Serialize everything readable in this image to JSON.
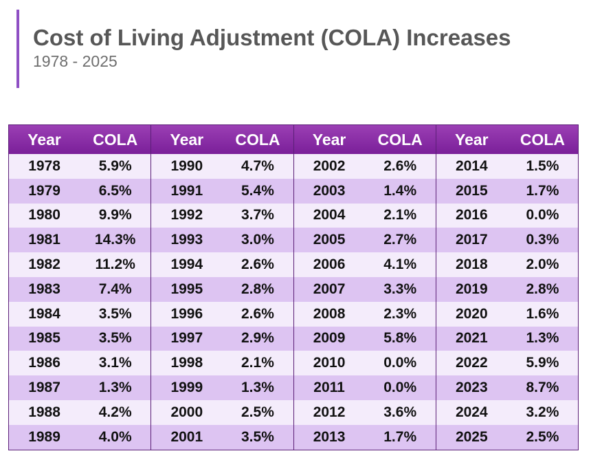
{
  "header": {
    "title": "Cost of Living Adjustment (COLA) Increases",
    "subtitle": "1978 - 2025"
  },
  "colors": {
    "accent_bar": "#8e4fc4",
    "header_bg": "#7a1f99",
    "row_light": "#f4ecfb",
    "row_dark": "#ddc4f2",
    "border": "#5b1f77"
  },
  "chart_data": {
    "type": "table",
    "columns": [
      "Year",
      "COLA"
    ],
    "groups": [
      {
        "year_label": "Year",
        "cola_label": "COLA",
        "rows": [
          {
            "year": "1978",
            "cola": "5.9%"
          },
          {
            "year": "1979",
            "cola": "6.5%"
          },
          {
            "year": "1980",
            "cola": "9.9%"
          },
          {
            "year": "1981",
            "cola": "14.3%"
          },
          {
            "year": "1982",
            "cola": "11.2%"
          },
          {
            "year": "1983",
            "cola": "7.4%"
          },
          {
            "year": "1984",
            "cola": "3.5%"
          },
          {
            "year": "1985",
            "cola": "3.5%"
          },
          {
            "year": "1986",
            "cola": "3.1%"
          },
          {
            "year": "1987",
            "cola": "1.3%"
          },
          {
            "year": "1988",
            "cola": "4.2%"
          },
          {
            "year": "1989",
            "cola": "4.0%"
          }
        ]
      },
      {
        "year_label": "Year",
        "cola_label": "COLA",
        "rows": [
          {
            "year": "1990",
            "cola": "4.7%"
          },
          {
            "year": "1991",
            "cola": "5.4%"
          },
          {
            "year": "1992",
            "cola": "3.7%"
          },
          {
            "year": "1993",
            "cola": "3.0%"
          },
          {
            "year": "1994",
            "cola": "2.6%"
          },
          {
            "year": "1995",
            "cola": "2.8%"
          },
          {
            "year": "1996",
            "cola": "2.6%"
          },
          {
            "year": "1997",
            "cola": "2.9%"
          },
          {
            "year": "1998",
            "cola": "2.1%"
          },
          {
            "year": "1999",
            "cola": "1.3%"
          },
          {
            "year": "2000",
            "cola": "2.5%"
          },
          {
            "year": "2001",
            "cola": "3.5%"
          }
        ]
      },
      {
        "year_label": "Year",
        "cola_label": "COLA",
        "rows": [
          {
            "year": "2002",
            "cola": "2.6%"
          },
          {
            "year": "2003",
            "cola": "1.4%"
          },
          {
            "year": "2004",
            "cola": "2.1%"
          },
          {
            "year": "2005",
            "cola": "2.7%"
          },
          {
            "year": "2006",
            "cola": "4.1%"
          },
          {
            "year": "2007",
            "cola": "3.3%"
          },
          {
            "year": "2008",
            "cola": "2.3%"
          },
          {
            "year": "2009",
            "cola": "5.8%"
          },
          {
            "year": "2010",
            "cola": "0.0%"
          },
          {
            "year": "2011",
            "cola": "0.0%"
          },
          {
            "year": "2012",
            "cola": "3.6%"
          },
          {
            "year": "2013",
            "cola": "1.7%"
          }
        ]
      },
      {
        "year_label": "Year",
        "cola_label": "COLA",
        "rows": [
          {
            "year": "2014",
            "cola": "1.5%"
          },
          {
            "year": "2015",
            "cola": "1.7%"
          },
          {
            "year": "2016",
            "cola": "0.0%"
          },
          {
            "year": "2017",
            "cola": "0.3%"
          },
          {
            "year": "2018",
            "cola": "2.0%"
          },
          {
            "year": "2019",
            "cola": "2.8%"
          },
          {
            "year": "2020",
            "cola": "1.6%"
          },
          {
            "year": "2021",
            "cola": "1.3%"
          },
          {
            "year": "2022",
            "cola": "5.9%"
          },
          {
            "year": "2023",
            "cola": "8.7%"
          },
          {
            "year": "2024",
            "cola": "3.2%"
          },
          {
            "year": "2025",
            "cola": "2.5%"
          }
        ]
      }
    ]
  }
}
